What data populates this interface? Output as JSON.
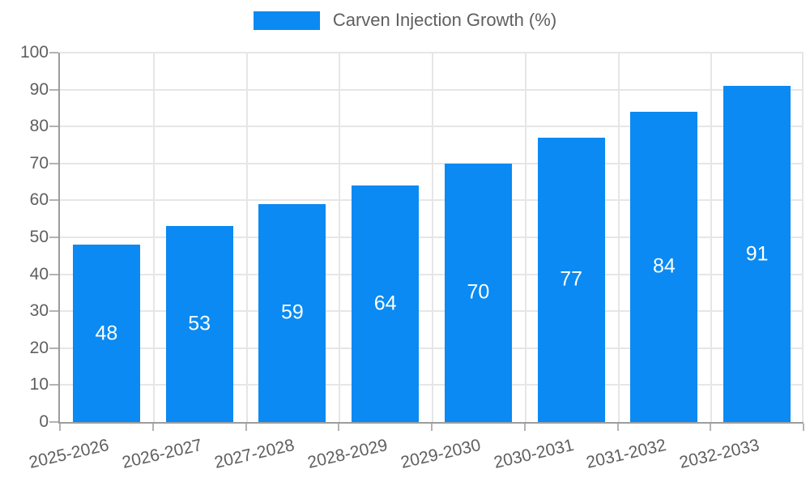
{
  "legend": {
    "label": "Carven Injection Growth (%)"
  },
  "chart_data": {
    "type": "bar",
    "title": "Carven Injection Growth (%)",
    "categories": [
      "2025-2026",
      "2026-2027",
      "2027-2028",
      "2028-2029",
      "2029-2030",
      "2030-2031",
      "2031-2032",
      "2032-2033"
    ],
    "values": [
      48,
      53,
      59,
      64,
      70,
      77,
      84,
      91
    ],
    "xlabel": "",
    "ylabel": "",
    "ylim": [
      0,
      100
    ],
    "ytick_step": 10,
    "yticks": [
      0,
      10,
      20,
      30,
      40,
      50,
      60,
      70,
      80,
      90,
      100
    ],
    "grid": true,
    "legend_position": "top-center",
    "value_labels": "inside-center"
  },
  "colors": {
    "bar": "#0a8af2",
    "grid": "#e6e6e6",
    "axis": "#9c9c9c",
    "tick": "#b3b3b3",
    "text": "#5f5f5f",
    "value_label": "#ffffff",
    "background": "#ffffff"
  }
}
